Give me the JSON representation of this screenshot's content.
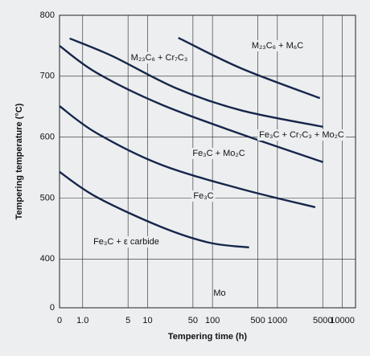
{
  "chart_data": {
    "type": "line",
    "xlabel": "Tempering time (h)",
    "ylabel": "Tempering temperature (°C)",
    "xscale": "log",
    "xlim": [
      0.44,
      16000
    ],
    "xticks": [
      {
        "value": 0.44,
        "label": "0"
      },
      {
        "value": 1,
        "label": "1.0"
      },
      5,
      10,
      50,
      100,
      500,
      1000,
      5000,
      10000
    ],
    "ylim": [
      320,
      800
    ],
    "yticks": [
      {
        "value": 320,
        "label": "0"
      },
      400,
      500,
      600,
      700,
      800
    ],
    "grid": true,
    "annotations": [
      "Mo"
    ],
    "series": [
      {
        "name": "M₂₃C₆ + M₆C",
        "color": "#16264a",
        "x": [
          29.8,
          276,
          4520
        ],
        "values": [
          763,
          713,
          664
        ]
      },
      {
        "name": "M₂₃C₆ + Cr₇C₃",
        "color": "#16264a",
        "x": [
          0.63,
          2.87,
          28,
          276,
          5070
        ],
        "values": [
          762,
          733,
          680,
          644,
          617
        ]
      },
      {
        "name": "Fe₃C + Cr₇C₃ + Mo₂C",
        "color": "#16264a",
        "x": [
          0.44,
          1.62,
          15.9,
          276,
          5070
        ],
        "values": [
          750,
          706,
          654,
          605,
          559
        ]
      },
      {
        "name": "Fe₃C + Mo₂C",
        "color": "#16264a",
        "x": [
          0.44,
          1.62,
          15.9,
          276,
          3830
        ],
        "values": [
          651,
          607,
          555,
          515,
          485
        ]
      },
      {
        "name": "Fe₃C",
        "color": "#16264a",
        "x": [
          0.44,
          1.62,
          15.9,
          88,
          366
        ],
        "values": [
          543,
          502,
          453,
          427,
          419
        ]
      },
      {
        "name": "Fe₃C + ε carbide",
        "color": "#16264a",
        "x": [],
        "values": []
      }
    ]
  }
}
